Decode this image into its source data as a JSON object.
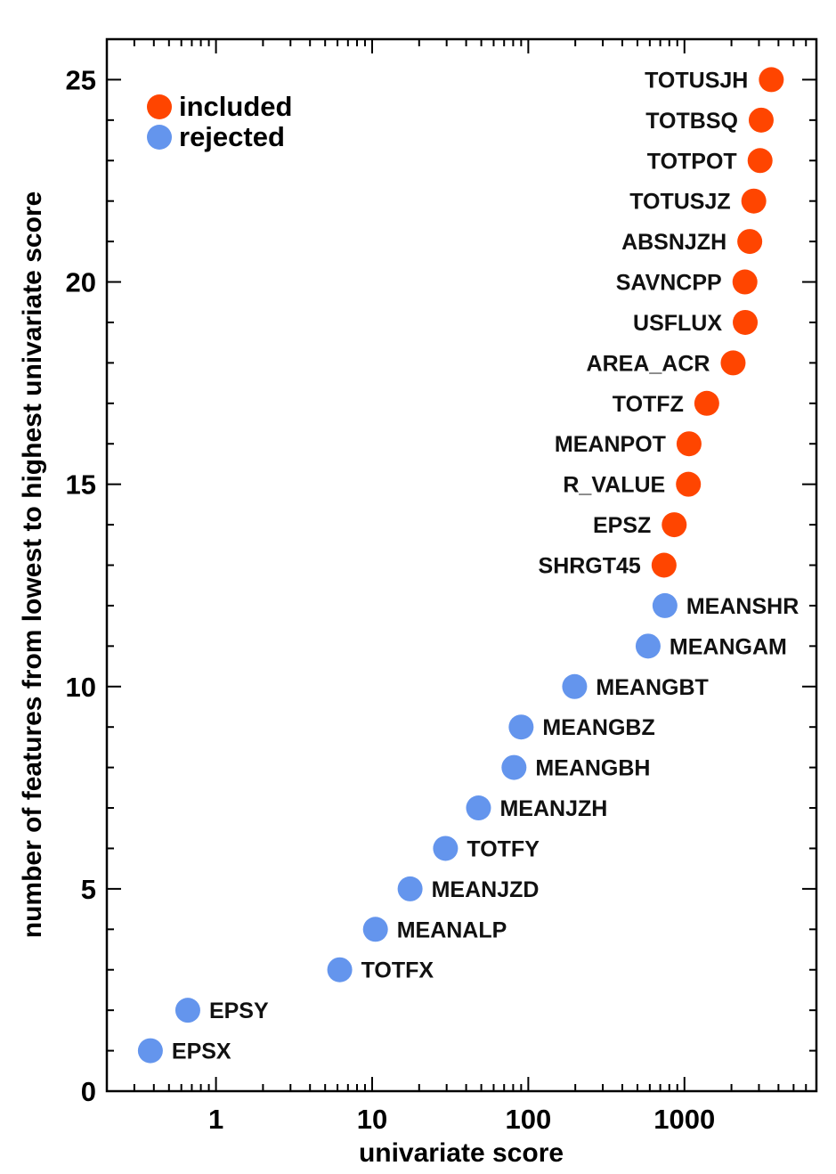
{
  "chart_data": {
    "type": "scatter",
    "title": "",
    "xlabel": "univariate score",
    "ylabel": "number of features from lowest to highest univariate score",
    "xscale": "log",
    "xlim": [
      0.2,
      7000
    ],
    "ylim": [
      0,
      26
    ],
    "xticks": [
      1,
      10,
      100,
      1000
    ],
    "xtick_labels": [
      "1",
      "10",
      "100",
      "1000"
    ],
    "yticks": [
      0,
      5,
      10,
      15,
      20,
      25
    ],
    "ytick_labels": [
      "0",
      "5",
      "10",
      "15",
      "20",
      "25"
    ],
    "grid": false,
    "legend": {
      "placement": "top-left",
      "entries": [
        {
          "label": "included",
          "color": "#ff4500"
        },
        {
          "label": "rejected",
          "color": "#6495ed"
        }
      ]
    },
    "series": [
      {
        "name": "included",
        "color": "#ff4500",
        "points": [
          {
            "label": "SHRGT45",
            "x": 740,
            "y": 13
          },
          {
            "label": "EPSZ",
            "x": 860,
            "y": 14
          },
          {
            "label": "R_VALUE",
            "x": 1060,
            "y": 15
          },
          {
            "label": "MEANPOT",
            "x": 1070,
            "y": 16
          },
          {
            "label": "TOTFZ",
            "x": 1390,
            "y": 17
          },
          {
            "label": "AREA_ACR",
            "x": 2050,
            "y": 18
          },
          {
            "label": "USFLUX",
            "x": 2450,
            "y": 19
          },
          {
            "label": "SAVNCPP",
            "x": 2440,
            "y": 20
          },
          {
            "label": "ABSNJZH",
            "x": 2620,
            "y": 21
          },
          {
            "label": "TOTUSJZ",
            "x": 2780,
            "y": 22
          },
          {
            "label": "TOTPOT",
            "x": 3050,
            "y": 23
          },
          {
            "label": "TOTBSQ",
            "x": 3100,
            "y": 24
          },
          {
            "label": "TOTUSJH",
            "x": 3600,
            "y": 25
          }
        ]
      },
      {
        "name": "rejected",
        "color": "#6495ed",
        "points": [
          {
            "label": "EPSX",
            "x": 0.38,
            "y": 1
          },
          {
            "label": "EPSY",
            "x": 0.66,
            "y": 2
          },
          {
            "label": "TOTFX",
            "x": 6.2,
            "y": 3
          },
          {
            "label": "MEANALP",
            "x": 10.5,
            "y": 4
          },
          {
            "label": "MEANJZD",
            "x": 17.5,
            "y": 5
          },
          {
            "label": "TOTFY",
            "x": 29.5,
            "y": 6
          },
          {
            "label": "MEANJZH",
            "x": 48,
            "y": 7
          },
          {
            "label": "MEANGBH",
            "x": 81,
            "y": 8
          },
          {
            "label": "MEANGBZ",
            "x": 90,
            "y": 9
          },
          {
            "label": "MEANGBT",
            "x": 198,
            "y": 10
          },
          {
            "label": "MEANGAM",
            "x": 585,
            "y": 11
          },
          {
            "label": "MEANSHR",
            "x": 750,
            "y": 12
          }
        ]
      }
    ]
  }
}
